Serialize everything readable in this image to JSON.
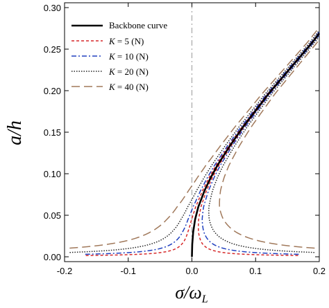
{
  "chart_data": {
    "type": "line",
    "xlabel": "σ/ωL",
    "xlabel_main": "σ/ω",
    "xlabel_sub": "L",
    "ylabel": "a/h",
    "xlim": [
      -0.2,
      0.2
    ],
    "ylim": [
      0,
      0.3
    ],
    "x_ticks": [
      "-0.2",
      "-0.1",
      "0.0",
      "0.1",
      "0.2"
    ],
    "y_ticks": [
      "0.00",
      "0.05",
      "0.10",
      "0.15",
      "0.20",
      "0.25",
      "0.30"
    ],
    "x_tick_values": [
      -0.2,
      -0.1,
      0.0,
      0.1,
      0.2
    ],
    "y_tick_values": [
      0.0,
      0.05,
      0.1,
      0.15,
      0.2,
      0.25,
      0.3
    ],
    "grid": false,
    "legend_position": "top-left",
    "reference_line_x": 0.0,
    "backbone": {
      "name": "Backbone curve",
      "color": "#000000",
      "x": [
        0.0,
        0.0005,
        0.002,
        0.005,
        0.01,
        0.02,
        0.03,
        0.04,
        0.05,
        0.06,
        0.07,
        0.08,
        0.09,
        0.1,
        0.11,
        0.12,
        0.13,
        0.14,
        0.15,
        0.16,
        0.17,
        0.18,
        0.19,
        0.2
      ],
      "y": [
        0.0,
        0.015,
        0.03,
        0.045,
        0.06,
        0.08,
        0.096,
        0.11,
        0.122,
        0.134,
        0.145,
        0.156,
        0.166,
        0.176,
        0.186,
        0.196,
        0.205,
        0.214,
        0.223,
        0.232,
        0.241,
        0.25,
        0.259,
        0.269
      ]
    },
    "series": [
      {
        "name": "K = 5",
        "label_k": "K",
        "label_rest": " = 5  (N)",
        "color": "#d62728",
        "dash": "4,3",
        "amplitude": 0.00025
      },
      {
        "name": "K = 10",
        "label_k": "K",
        "label_rest": " = 10  (N)",
        "color": "#1f3fbf",
        "dash": "7,3,2,3",
        "amplitude": 0.0005
      },
      {
        "name": "K = 20",
        "label_k": "K",
        "label_rest": " = 20  (N)",
        "color": "#222222",
        "dash": "1.5,2",
        "amplitude": 0.001
      },
      {
        "name": "K = 40",
        "label_k": "K",
        "label_rest": " = 40  (N)",
        "color": "#a0785a",
        "dash": "12,6",
        "amplitude": 0.002
      }
    ]
  }
}
